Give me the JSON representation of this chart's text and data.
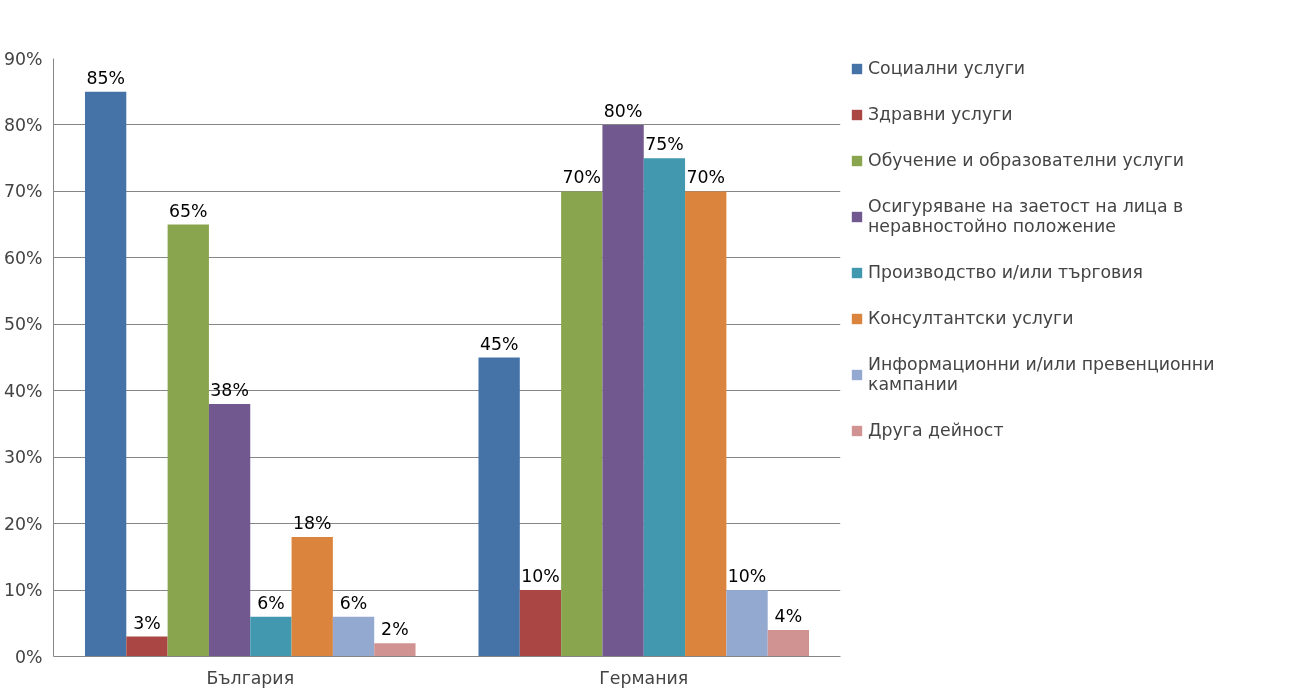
{
  "chart_data": {
    "type": "bar",
    "categories": [
      "България",
      "Германия"
    ],
    "ylim": [
      0,
      90
    ],
    "yticks": [
      {
        "value": 0,
        "label": "0%"
      },
      {
        "value": 10,
        "label": "10%"
      },
      {
        "value": 20,
        "label": "20%"
      },
      {
        "value": 30,
        "label": "30%"
      },
      {
        "value": 40,
        "label": "40%"
      },
      {
        "value": 50,
        "label": "50%"
      },
      {
        "value": 60,
        "label": "60%"
      },
      {
        "value": 70,
        "label": "70%"
      },
      {
        "value": 80,
        "label": "80%"
      },
      {
        "value": 90,
        "label": "90%"
      }
    ],
    "grid": "y",
    "legend": "right",
    "series": [
      {
        "name": "Социални услуги",
        "color": "#4572a7",
        "values": [
          85,
          45
        ],
        "value_labels": [
          "85%",
          "45%"
        ]
      },
      {
        "name": "Здравни услуги",
        "color": "#aa4643",
        "values": [
          3,
          10
        ],
        "value_labels": [
          "3%",
          "10%"
        ]
      },
      {
        "name": "Обучение и образователни услуги",
        "color": "#89a54e",
        "values": [
          65,
          70
        ],
        "value_labels": [
          "65%",
          "70%"
        ]
      },
      {
        "name": "Осигуряване на заетост на лица в неравностойно положение",
        "color": "#71588f",
        "values": [
          38,
          80
        ],
        "value_labels": [
          "38%",
          "80%"
        ]
      },
      {
        "name": "Производство и/или търговия",
        "color": "#4198af",
        "values": [
          6,
          75
        ],
        "value_labels": [
          "6%",
          "75%"
        ]
      },
      {
        "name": "Консултантски услуги",
        "color": "#db843d",
        "values": [
          18,
          70
        ],
        "value_labels": [
          "18%",
          "70%"
        ]
      },
      {
        "name": "Информационни и/или превенционни кампании",
        "color": "#93a9cf",
        "values": [
          6,
          10
        ],
        "value_labels": [
          "6%",
          "10%"
        ]
      },
      {
        "name": "Друга дейност",
        "color": "#d19392",
        "values": [
          2,
          4
        ],
        "value_labels": [
          "2%",
          "4%"
        ]
      }
    ]
  }
}
